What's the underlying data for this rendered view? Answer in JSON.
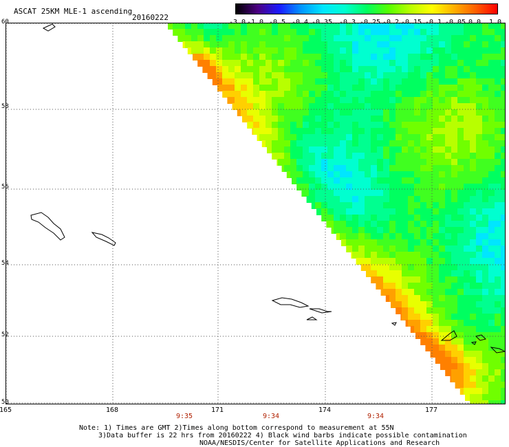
{
  "header": {
    "title": "ASCAT 25KM MLE-1 ascending",
    "date": "20160222"
  },
  "colorbar": {
    "labels": [
      "-3.0",
      "-1.0",
      "-0.5",
      "-0.4",
      "-0.35",
      "-0.3",
      "-0.25",
      "-0.2",
      "-0.15",
      "-0.1",
      "-0.05",
      "0.0",
      "1.0"
    ],
    "colors": [
      "#000000",
      "#4b0082",
      "#1a1aff",
      "#0096ff",
      "#00e6ff",
      "#00ffd0",
      "#00ff60",
      "#55ff00",
      "#b8ff00",
      "#ffff00",
      "#ffb000",
      "#ff6000",
      "#ff0000"
    ]
  },
  "map": {
    "lat_labels": [
      "60",
      "58",
      "56",
      "54",
      "52",
      "50"
    ],
    "lon_labels": [
      "165",
      "168",
      "171",
      "174",
      "177"
    ],
    "time_labels": [
      "9:35",
      "9:34",
      "9:34"
    ]
  },
  "notes": {
    "line1": "Note: 1) Times are GMT 2)Times along bottom correspond to measurement at 55N",
    "line2": "3)Data buffer is 22 hrs from 20160222 4) Black wind barbs indicate possible contamination",
    "line3": "NOAA/NESDIS/Center for Satellite Applications and Research"
  }
}
